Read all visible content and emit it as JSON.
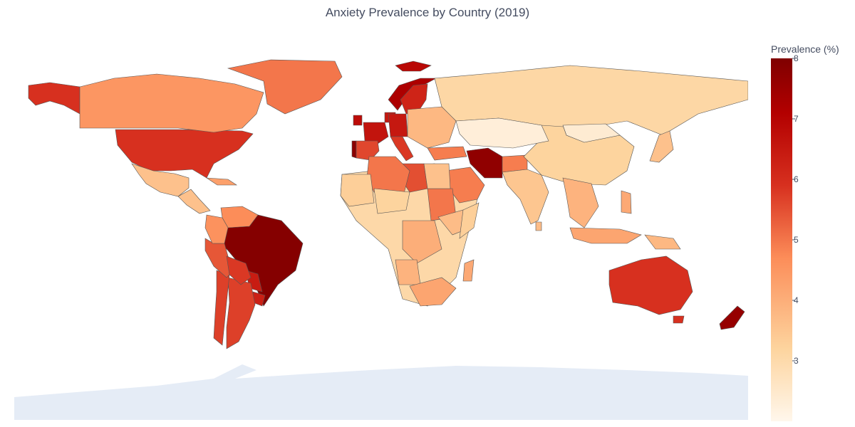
{
  "title": "Anxiety Prevalence by Country (2019)",
  "colorbar": {
    "title": "Prevalence (%)",
    "min": 2.0,
    "max": 8.0,
    "ticks": [
      3,
      4,
      5,
      6,
      7,
      8
    ],
    "colors": [
      "#fff7ec",
      "#fdd49e",
      "#fc8d59",
      "#d7301f",
      "#b30000",
      "#7f0000"
    ],
    "stops": [
      0,
      0.2,
      0.45,
      0.65,
      0.85,
      1
    ]
  },
  "colors": {
    "land_default": "#fdd8a8",
    "antarctica": "#e5ecf6",
    "border": "#555555"
  },
  "countries": [
    {
      "name": "Brazil",
      "value": 7.9
    },
    {
      "name": "Portugal",
      "value": 7.8
    },
    {
      "name": "Iran",
      "value": 7.7
    },
    {
      "name": "New Zealand",
      "value": 7.6
    },
    {
      "name": "Norway",
      "value": 7.2
    },
    {
      "name": "Iceland",
      "value": 6.9
    },
    {
      "name": "Ireland",
      "value": 6.8
    },
    {
      "name": "France",
      "value": 6.6
    },
    {
      "name": "Netherlands",
      "value": 6.5
    },
    {
      "name": "Germany",
      "value": 6.5
    },
    {
      "name": "Sweden",
      "value": 6.2
    },
    {
      "name": "Paraguay",
      "value": 6.4
    },
    {
      "name": "Uruguay",
      "value": 6.3
    },
    {
      "name": "Australia",
      "value": 5.9
    },
    {
      "name": "United States",
      "value": 5.9
    },
    {
      "name": "Alaska",
      "value": 5.9
    },
    {
      "name": "Argentina",
      "value": 5.7
    },
    {
      "name": "Chile",
      "value": 5.7
    },
    {
      "name": "Italy",
      "value": 5.8
    },
    {
      "name": "Spain",
      "value": 5.6
    },
    {
      "name": "Peru",
      "value": 5.4
    },
    {
      "name": "Libya",
      "value": 5.5
    },
    {
      "name": "Greenland",
      "value": 5.0
    },
    {
      "name": "Canada",
      "value": 4.5
    },
    {
      "name": "Algeria",
      "value": 5.0
    },
    {
      "name": "Saudi Arabia",
      "value": 4.9
    },
    {
      "name": "Sudan",
      "value": 5.0
    },
    {
      "name": "Afghanistan",
      "value": 4.9
    },
    {
      "name": "Venezuela",
      "value": 4.7
    },
    {
      "name": "Colombia",
      "value": 4.6
    },
    {
      "name": "Bolivia",
      "value": 5.8
    },
    {
      "name": "Mexico",
      "value": 3.6
    },
    {
      "name": "India",
      "value": 3.5
    },
    {
      "name": "China",
      "value": 3.2
    },
    {
      "name": "Russia",
      "value": 3.1
    },
    {
      "name": "Kazakhstan",
      "value": 2.3
    },
    {
      "name": "Mongolia",
      "value": 2.4
    },
    {
      "name": "Mali",
      "value": 3.3
    },
    {
      "name": "Niger",
      "value": 3.2
    },
    {
      "name": "DR Congo",
      "value": 4.0
    },
    {
      "name": "Angola",
      "value": 3.9
    },
    {
      "name": "South Africa",
      "value": 4.2
    },
    {
      "name": "Madagascar",
      "value": 4.1
    },
    {
      "name": "Indonesia",
      "value": 4.2
    },
    {
      "name": "Japan",
      "value": 3.6
    },
    {
      "name": "Egypt",
      "value": 3.6
    },
    {
      "name": "Ethiopia",
      "value": 3.7
    },
    {
      "name": "Southeast Asia",
      "value": 3.9
    },
    {
      "name": "Central America",
      "value": 3.6
    },
    {
      "name": "Eastern Europe",
      "value": 3.8
    },
    {
      "name": "Turkey",
      "value": 4.9
    },
    {
      "name": "Papua New Guinea",
      "value": 3.8
    },
    {
      "name": "Tasmania",
      "value": 5.9
    },
    {
      "name": "Sri Lanka",
      "value": 3.7
    },
    {
      "name": "Philippines",
      "value": 4.1
    },
    {
      "name": "Cuba",
      "value": 4.3
    },
    {
      "name": "Somalia",
      "value": 3.3
    }
  ]
}
